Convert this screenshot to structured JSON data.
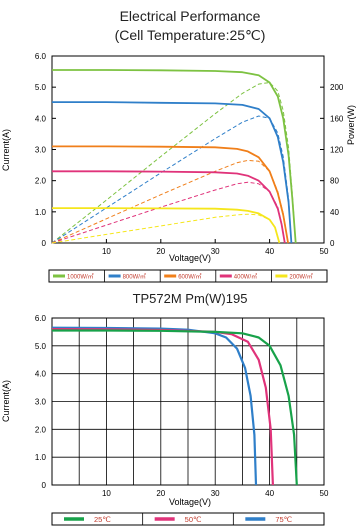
{
  "title": {
    "line1": "Electrical Performance",
    "line2": "(Cell Temperature:25℃)"
  },
  "chart_data": [
    {
      "type": "line",
      "id": "irradiance-chart",
      "xlabel": "Voltage(V)",
      "ylabel": "Current(A)",
      "y2label": "Power(W)",
      "xlim": [
        0,
        50
      ],
      "ylim": [
        0,
        6.0
      ],
      "y2lim": [
        0,
        240
      ],
      "xticks": [
        10,
        20,
        30,
        40,
        50
      ],
      "yticks": [
        "0",
        "1.0",
        "2.0",
        "3.0",
        "4.0",
        "5.0",
        "6.0"
      ],
      "y2ticks": [
        0,
        40,
        80,
        120,
        160,
        200
      ],
      "grid": false,
      "legend_position": "bottom",
      "series": [
        {
          "name": "1000W/㎡",
          "color": "#7dc242",
          "iv": [
            [
              0,
              5.55
            ],
            [
              10,
              5.55
            ],
            [
              20,
              5.54
            ],
            [
              30,
              5.52
            ],
            [
              35,
              5.48
            ],
            [
              38,
              5.38
            ],
            [
              40,
              5.15
            ],
            [
              41.5,
              4.7
            ],
            [
              42.5,
              4.0
            ],
            [
              43.5,
              2.8
            ],
            [
              44.2,
              1.4
            ],
            [
              44.8,
              0
            ]
          ],
          "pv": [
            [
              0,
              0
            ],
            [
              10,
              55
            ],
            [
              20,
              111
            ],
            [
              30,
              166
            ],
            [
              35,
              192
            ],
            [
              38,
              204
            ],
            [
              40,
              206
            ],
            [
              41.5,
              195
            ],
            [
              42.5,
              170
            ],
            [
              43.5,
              122
            ],
            [
              44.2,
              62
            ],
            [
              44.8,
              0
            ]
          ]
        },
        {
          "name": "800W/㎡",
          "color": "#2f7fc9",
          "iv": [
            [
              0,
              4.52
            ],
            [
              10,
              4.52
            ],
            [
              20,
              4.5
            ],
            [
              30,
              4.48
            ],
            [
              35,
              4.43
            ],
            [
              38,
              4.3
            ],
            [
              40,
              4.0
            ],
            [
              41.5,
              3.4
            ],
            [
              42.5,
              2.6
            ],
            [
              43.5,
              1.3
            ],
            [
              44.0,
              0
            ]
          ],
          "pv": [
            [
              0,
              0
            ],
            [
              10,
              45
            ],
            [
              20,
              90
            ],
            [
              30,
              134
            ],
            [
              35,
              155
            ],
            [
              38,
              163
            ],
            [
              40,
              160
            ],
            [
              41.5,
              141
            ],
            [
              42.5,
              111
            ],
            [
              43.5,
              57
            ],
            [
              44.0,
              0
            ]
          ]
        },
        {
          "name": "600W/㎡",
          "color": "#f07f1a",
          "iv": [
            [
              0,
              3.1
            ],
            [
              10,
              3.1
            ],
            [
              20,
              3.09
            ],
            [
              30,
              3.07
            ],
            [
              34,
              3.02
            ],
            [
              36,
              2.94
            ],
            [
              38,
              2.75
            ],
            [
              40,
              2.3
            ],
            [
              41.5,
              1.6
            ],
            [
              42.5,
              0.9
            ],
            [
              43.4,
              0
            ]
          ],
          "pv": [
            [
              0,
              0
            ],
            [
              10,
              31
            ],
            [
              20,
              62
            ],
            [
              30,
              92
            ],
            [
              34,
              103
            ],
            [
              36,
              106
            ],
            [
              38,
              105
            ],
            [
              40,
              92
            ],
            [
              41.5,
              66
            ],
            [
              42.5,
              38
            ],
            [
              43.4,
              0
            ]
          ]
        },
        {
          "name": "400W/㎡",
          "color": "#e0337a",
          "iv": [
            [
              0,
              2.3
            ],
            [
              10,
              2.3
            ],
            [
              20,
              2.29
            ],
            [
              30,
              2.27
            ],
            [
              34,
              2.23
            ],
            [
              36,
              2.16
            ],
            [
              38,
              2.0
            ],
            [
              40,
              1.65
            ],
            [
              41.5,
              1.1
            ],
            [
              42.2,
              0.6
            ],
            [
              42.8,
              0
            ]
          ],
          "pv": [
            [
              0,
              0
            ],
            [
              10,
              23
            ],
            [
              20,
              46
            ],
            [
              30,
              68
            ],
            [
              34,
              76
            ],
            [
              36,
              78
            ],
            [
              38,
              76
            ],
            [
              40,
              66
            ],
            [
              41.5,
              46
            ],
            [
              42.2,
              25
            ],
            [
              42.8,
              0
            ]
          ]
        },
        {
          "name": "200W/㎡",
          "color": "#f5e61c",
          "iv": [
            [
              0,
              1.12
            ],
            [
              10,
              1.12
            ],
            [
              20,
              1.11
            ],
            [
              30,
              1.1
            ],
            [
              34,
              1.07
            ],
            [
              36,
              1.03
            ],
            [
              38,
              0.95
            ],
            [
              40,
              0.75
            ],
            [
              41,
              0.5
            ],
            [
              41.8,
              0
            ]
          ],
          "pv": [
            [
              0,
              0
            ],
            [
              10,
              11
            ],
            [
              20,
              22
            ],
            [
              30,
              33
            ],
            [
              34,
              36
            ],
            [
              36,
              37
            ],
            [
              38,
              36
            ],
            [
              40,
              30
            ],
            [
              41,
              20
            ],
            [
              41.8,
              0
            ]
          ]
        }
      ]
    },
    {
      "type": "line",
      "id": "temperature-chart",
      "title": "TP572M   Pm(W)195",
      "xlabel": "Voltage(V)",
      "ylabel": "Current(A)",
      "xlim": [
        0,
        50
      ],
      "ylim": [
        0,
        6.0
      ],
      "xticks": [
        10,
        20,
        30,
        40,
        50
      ],
      "yticks": [
        "0",
        "1.0",
        "2.0",
        "3.0",
        "4.0",
        "5.0",
        "6.0"
      ],
      "grid": true,
      "legend_position": "bottom",
      "series": [
        {
          "name": "75℃",
          "color": "#2f7fc9",
          "iv": [
            [
              0,
              5.65
            ],
            [
              10,
              5.64
            ],
            [
              20,
              5.62
            ],
            [
              25,
              5.58
            ],
            [
              30,
              5.45
            ],
            [
              32,
              5.3
            ],
            [
              34,
              4.9
            ],
            [
              35.5,
              4.2
            ],
            [
              36.5,
              3.2
            ],
            [
              37.2,
              1.8
            ],
            [
              37.5,
              0
            ]
          ]
        },
        {
          "name": "50℃",
          "color": "#e0337a",
          "iv": [
            [
              0,
              5.6
            ],
            [
              10,
              5.59
            ],
            [
              20,
              5.57
            ],
            [
              30,
              5.5
            ],
            [
              33,
              5.42
            ],
            [
              36,
              5.15
            ],
            [
              38,
              4.5
            ],
            [
              39.3,
              3.5
            ],
            [
              40.2,
              2.0
            ],
            [
              40.6,
              0
            ]
          ]
        },
        {
          "name": "25℃",
          "color": "#18a24a",
          "iv": [
            [
              0,
              5.55
            ],
            [
              10,
              5.55
            ],
            [
              20,
              5.54
            ],
            [
              30,
              5.5
            ],
            [
              35,
              5.45
            ],
            [
              38,
              5.3
            ],
            [
              40,
              5.0
            ],
            [
              42,
              4.3
            ],
            [
              43.5,
              3.2
            ],
            [
              44.5,
              1.8
            ],
            [
              45.0,
              0
            ]
          ]
        }
      ]
    }
  ]
}
